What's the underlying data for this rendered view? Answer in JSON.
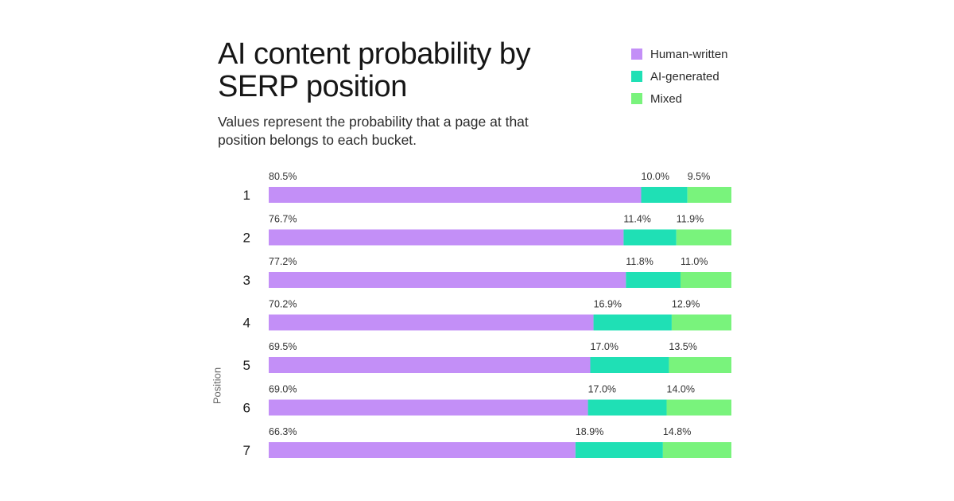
{
  "colors": {
    "human": "#c38ff7",
    "ai": "#1fe0b5",
    "mixed": "#79f37c"
  },
  "chart_data": {
    "type": "bar",
    "orientation": "horizontal",
    "stacked": true,
    "title": "AI content probability by SERP position",
    "subtitle": "Values represent the probability that a page at that position belongs to each bucket.",
    "ylabel": "Position",
    "xlabel": "",
    "xlim": [
      0,
      100
    ],
    "legend_position": "top-right",
    "grid": false,
    "categories": [
      "1",
      "2",
      "3",
      "4",
      "5",
      "6",
      "7"
    ],
    "series": [
      {
        "name": "Human-written",
        "color": "#c38ff7",
        "values": [
          80.5,
          76.7,
          77.2,
          70.2,
          69.5,
          69.0,
          66.3
        ],
        "labels": [
          "80.5%",
          "76.7%",
          "77.2%",
          "70.2%",
          "69.5%",
          "69.0%",
          "66.3%"
        ]
      },
      {
        "name": "AI-generated",
        "color": "#1fe0b5",
        "values": [
          10.0,
          11.4,
          11.8,
          16.9,
          17.0,
          17.0,
          18.9
        ],
        "labels": [
          "10.0%",
          "11.4%",
          "11.8%",
          "16.9%",
          "17.0%",
          "17.0%",
          "18.9%"
        ]
      },
      {
        "name": "Mixed",
        "color": "#79f37c",
        "values": [
          9.5,
          11.9,
          11.0,
          12.9,
          13.5,
          14.0,
          14.8
        ],
        "labels": [
          "9.5%",
          "11.9%",
          "11.0%",
          "12.9%",
          "13.5%",
          "14.0%",
          "14.8%"
        ]
      }
    ]
  }
}
